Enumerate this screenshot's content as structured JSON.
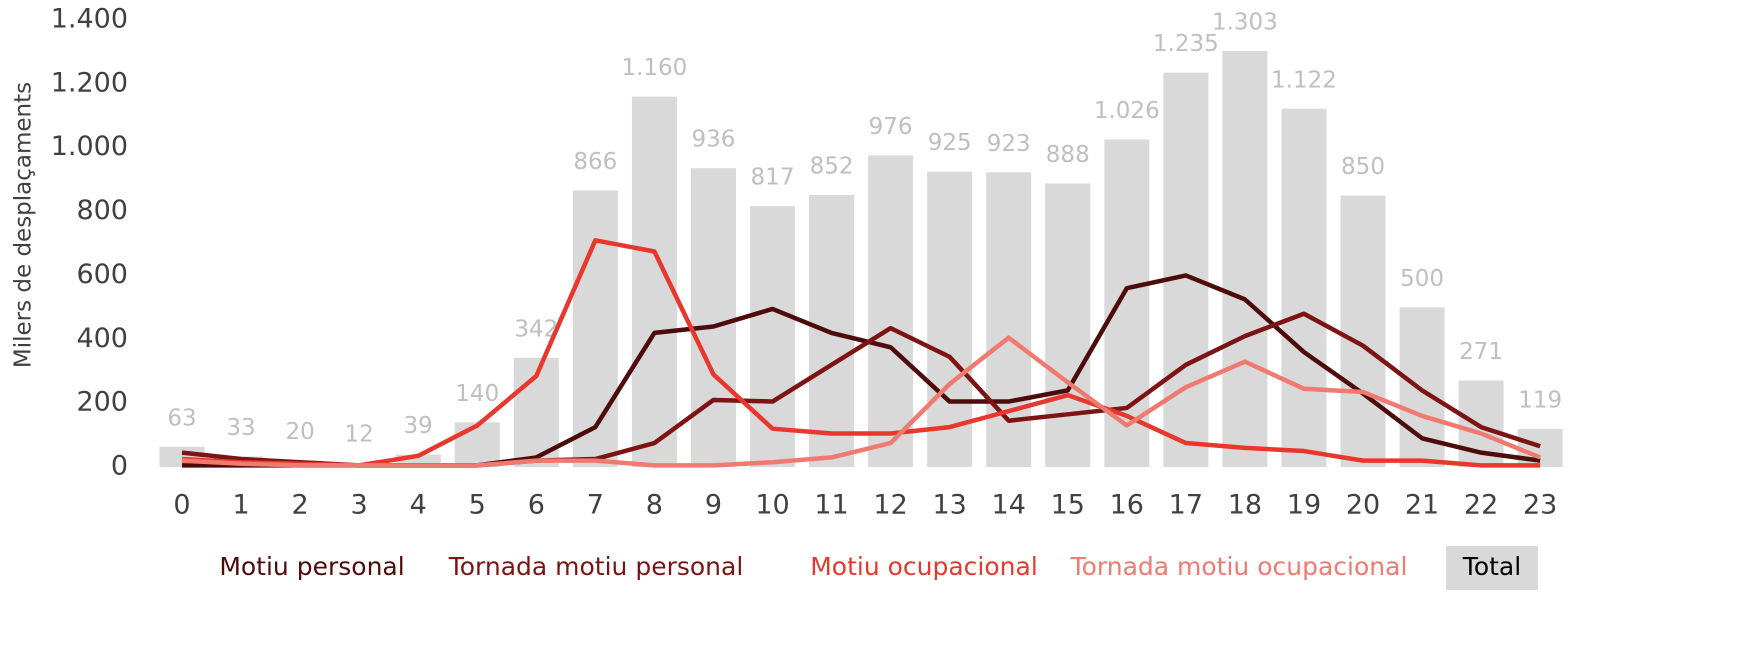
{
  "chart_data": {
    "type": "combo",
    "ylabel": "Milers de desplaçaments",
    "categories": [
      "0",
      "1",
      "2",
      "3",
      "4",
      "5",
      "6",
      "7",
      "8",
      "9",
      "10",
      "11",
      "12",
      "13",
      "14",
      "15",
      "16",
      "17",
      "18",
      "19",
      "20",
      "21",
      "22",
      "23"
    ],
    "ylim": [
      0,
      1400
    ],
    "yticks": [
      0,
      200,
      400,
      600,
      800,
      {
        "value": 1000,
        "label": "1.000"
      },
      {
        "value": 1200,
        "label": "1.200"
      },
      {
        "value": 1400,
        "label": "1.400"
      }
    ],
    "series": [
      {
        "name": "Motiu personal",
        "type": "line",
        "color": "#4d0b0b",
        "values": [
          5,
          5,
          5,
          5,
          5,
          5,
          30,
          125,
          420,
          440,
          495,
          420,
          375,
          205,
          205,
          240,
          560,
          600,
          525,
          360,
          230,
          90,
          45,
          20
        ]
      },
      {
        "name": "Tornada motiu personal",
        "type": "line",
        "color": "#7d1313",
        "values": [
          45,
          25,
          15,
          5,
          5,
          5,
          20,
          25,
          75,
          210,
          205,
          320,
          435,
          345,
          145,
          165,
          185,
          320,
          410,
          480,
          380,
          240,
          125,
          65
        ]
      },
      {
        "name": "Motiu ocupacional",
        "type": "line",
        "color": "#e8372c",
        "values": [
          25,
          15,
          10,
          5,
          35,
          130,
          285,
          710,
          675,
          290,
          120,
          105,
          105,
          125,
          175,
          225,
          160,
          75,
          60,
          50,
          20,
          20,
          5,
          5
        ]
      },
      {
        "name": "Tornada motiu ocupacional",
        "type": "line",
        "color": "#f07a70",
        "values": [
          20,
          10,
          5,
          5,
          5,
          5,
          20,
          20,
          5,
          5,
          15,
          30,
          75,
          260,
          405,
          265,
          130,
          250,
          330,
          245,
          235,
          160,
          105,
          30
        ]
      },
      {
        "name": "Total",
        "type": "bar",
        "color": "#d9d9d9",
        "values": [
          63,
          33,
          20,
          12,
          39,
          140,
          342,
          866,
          1160,
          936,
          817,
          852,
          976,
          925,
          923,
          888,
          1026,
          1235,
          1303,
          1122,
          850,
          500,
          271,
          119
        ],
        "value_labels": [
          "63",
          "33",
          "20",
          "12",
          "39",
          "140",
          "342",
          "866",
          "1.160",
          "936",
          "817",
          "852",
          "976",
          "925",
          "923",
          "888",
          "1.026",
          "1.235",
          "1.303",
          "1.122",
          "850",
          "500",
          "271",
          "119"
        ]
      }
    ]
  }
}
